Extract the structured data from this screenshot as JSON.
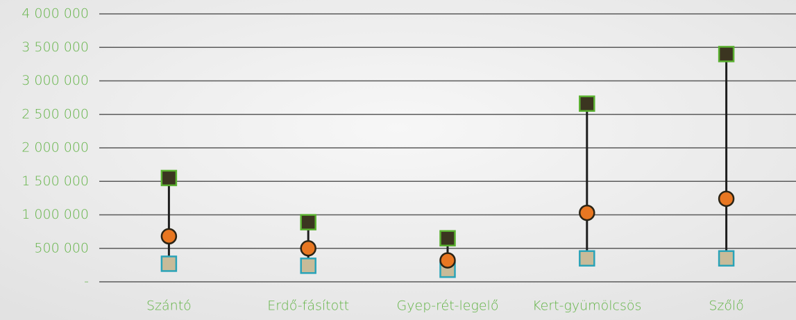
{
  "chart_data": {
    "type": "high-low",
    "categories": [
      "Szántó",
      "Erdő-fásított",
      "Gyep-rét-legelő",
      "Kert-gyümölcsös",
      "Szőlő"
    ],
    "series": [
      {
        "color": "#3b3520",
        "stroke": "#5ab030",
        "marker": "square",
        "values": [
          1550000,
          890000,
          650000,
          2660000,
          3400000
        ]
      },
      {
        "color": "#e87722",
        "stroke": "#2b2416",
        "marker": "circle",
        "values": [
          680000,
          500000,
          320000,
          1030000,
          1240000
        ]
      },
      {
        "color": "#c8bb99",
        "stroke": "#2aa3b8",
        "marker": "square",
        "values": [
          270000,
          240000,
          180000,
          350000,
          350000
        ]
      }
    ],
    "ylim": [
      0,
      4000000
    ],
    "yticks": [
      {
        "value": 0,
        "label": "-"
      },
      {
        "value": 500000,
        "label": "500 000"
      },
      {
        "value": 1000000,
        "label": "1 000 000"
      },
      {
        "value": 1500000,
        "label": "1 500 000"
      },
      {
        "value": 2000000,
        "label": "2 000 000"
      },
      {
        "value": 2500000,
        "label": "2 500 000"
      },
      {
        "value": 3000000,
        "label": "3 000 000"
      },
      {
        "value": 3500000,
        "label": "3 500 000"
      },
      {
        "value": 4000000,
        "label": "4 000 000"
      }
    ],
    "grid": true,
    "label_color": "#62b346",
    "range_line_color": "#1e1e1e"
  }
}
